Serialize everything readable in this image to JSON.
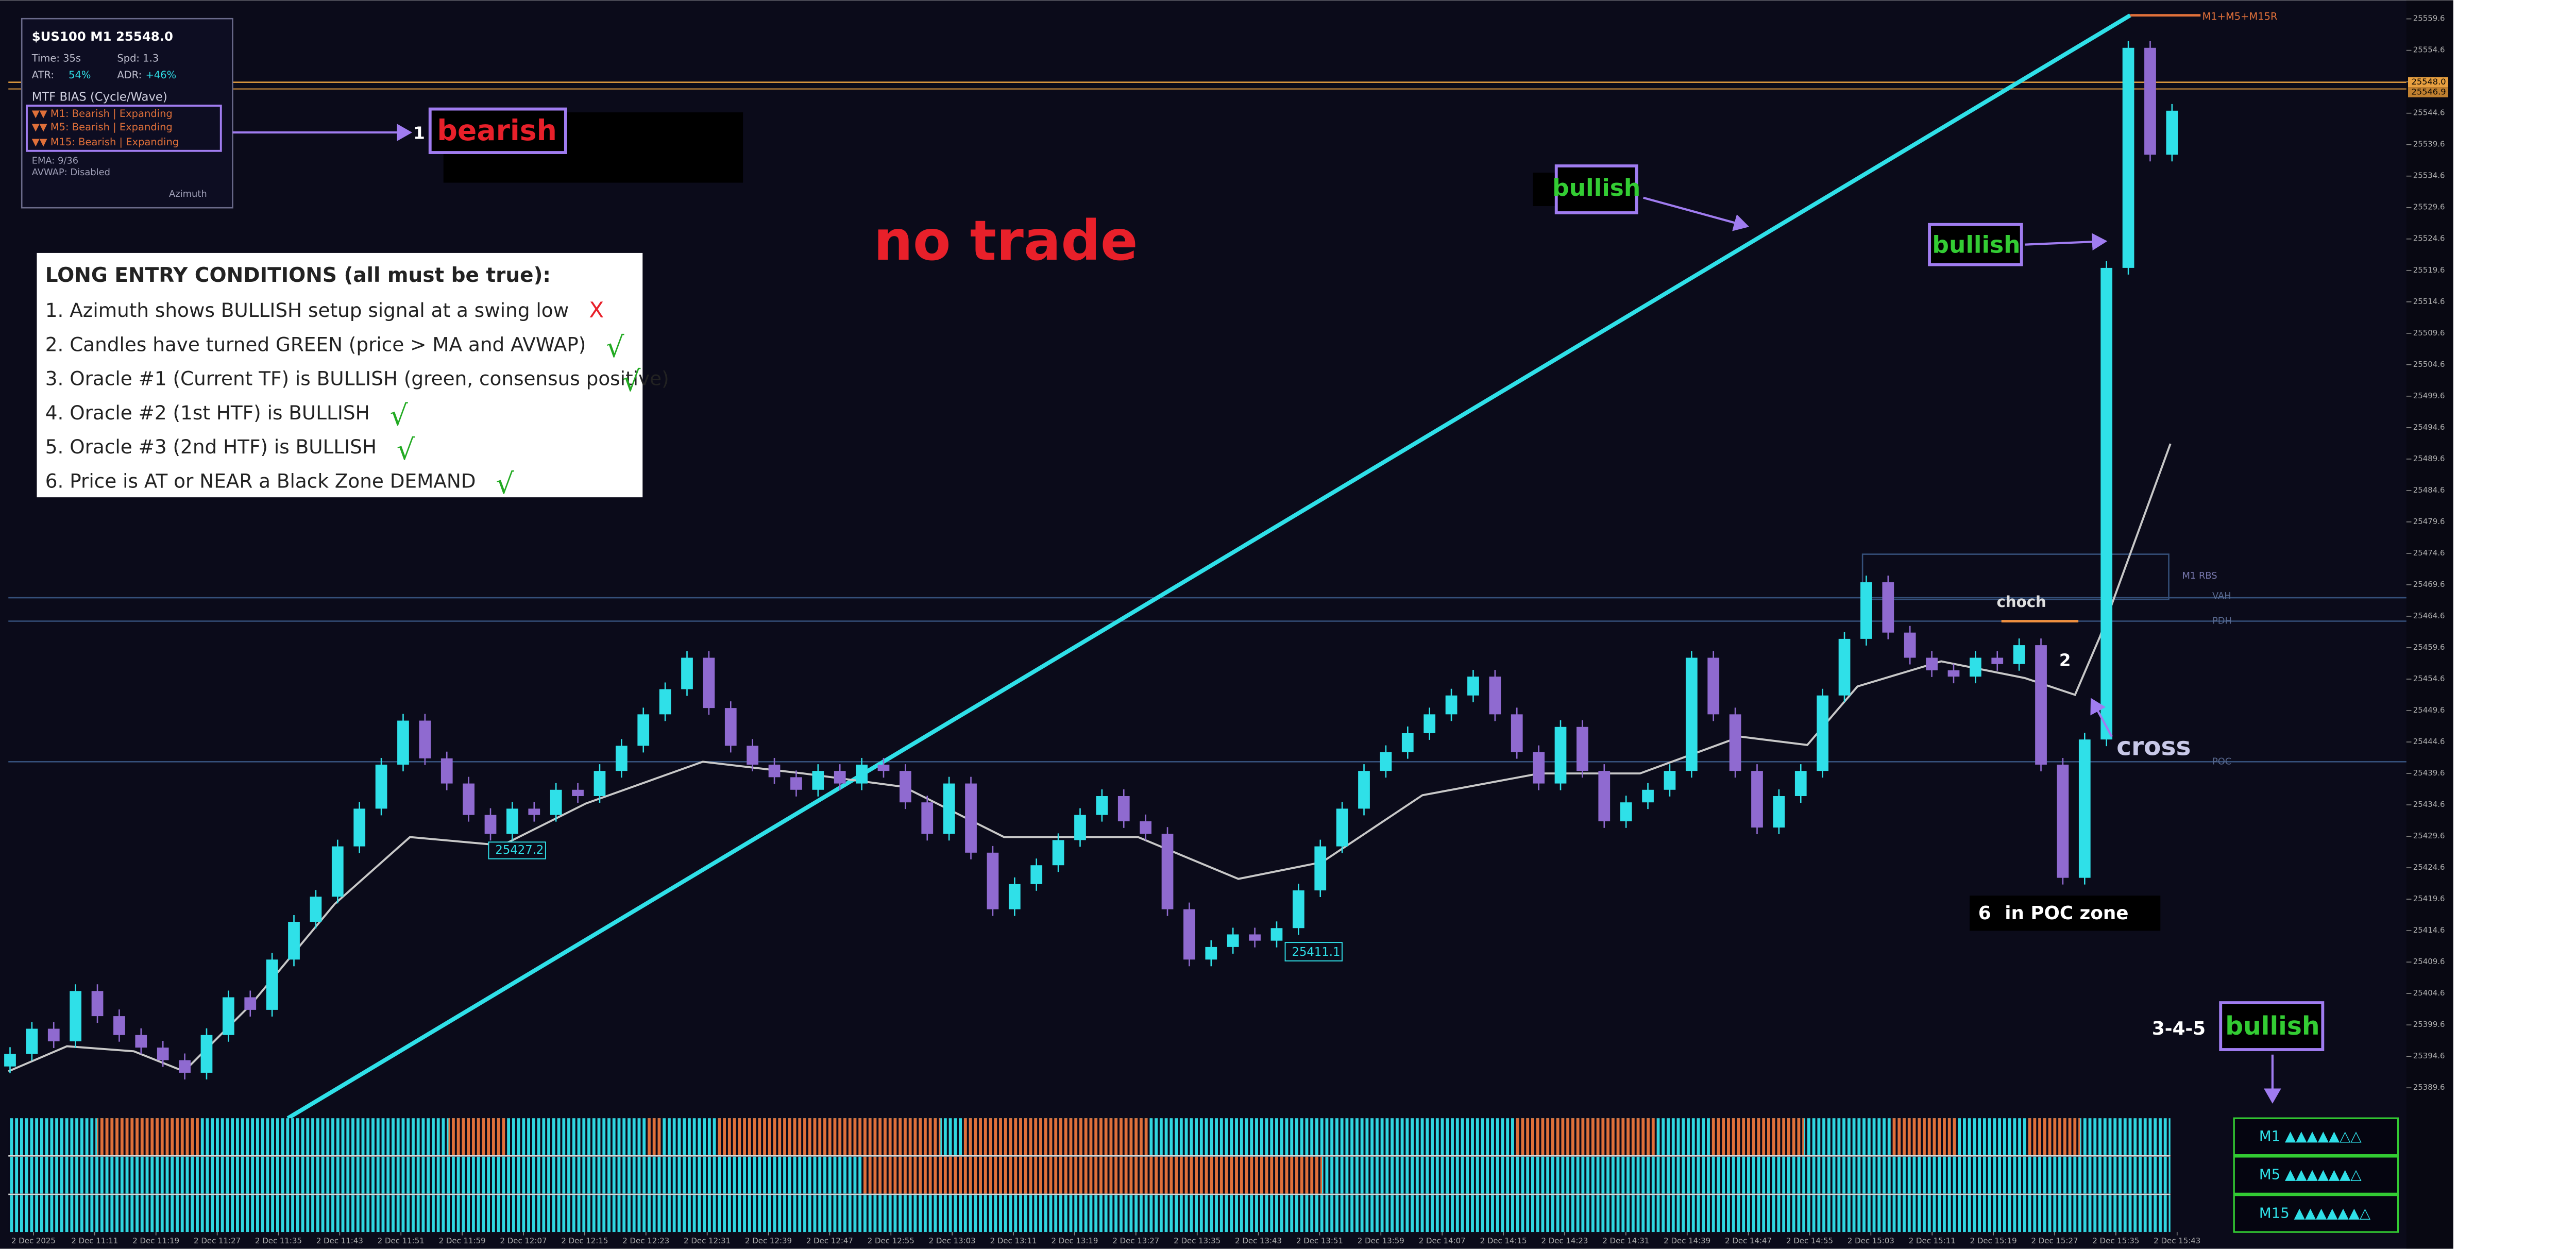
{
  "info_panel": {
    "title": "$US100 M1 25548.0",
    "time": "Time: 35s",
    "spd": "Spd: 1.3",
    "atr_label": "ATR:",
    "atr": "54%",
    "adr_label": "ADR:",
    "adr": "+46%",
    "bias_title": "MTF BIAS (Cycle/Wave)",
    "bias": [
      "▼▼ M1: Bearish | Expanding",
      "▼▼ M5: Bearish | Expanding",
      "▼▼ M15: Bearish | Expanding"
    ],
    "ema": "EMA: 9/36",
    "avwap": "AVWAP: Disabled",
    "brand": "Azimuth"
  },
  "conditions": {
    "title": "LONG ENTRY CONDITIONS (all must be true):",
    "items": [
      {
        "text": "1. Azimuth shows BULLISH setup signal at a swing low",
        "mark": "X"
      },
      {
        "text": "2. Candles have turned GREEN (price > MA and AVWAP)",
        "mark": "√"
      },
      {
        "text": "3. Oracle #1 (Current TF) is BULLISH (green, consensus positive)",
        "mark": "√"
      },
      {
        "text": "4. Oracle #2 (1st HTF) is BULLISH",
        "mark": "√"
      },
      {
        "text": "5. Oracle #3 (2nd HTF) is BULLISH",
        "mark": "√"
      },
      {
        "text": "6. Price is AT or NEAR a Black Zone DEMAND",
        "mark": "√"
      }
    ]
  },
  "annotations": {
    "step1": "1",
    "bearish": "bearish",
    "no_trade": "no trade",
    "bullish_line": "bullish",
    "bullish_candle": "bullish",
    "choch": "choch",
    "step2": "2",
    "cross": "cross",
    "step6": "6",
    "poc_zone": "in POC zone",
    "step345": "3-4-5",
    "bullish_table": "bullish",
    "swing_low_1": "25427.2",
    "swing_low_2": "25411.1",
    "mtf_label": "M1+M5+M15R"
  },
  "levels": {
    "rbs": "M1 RBS",
    "vah": "VAH",
    "pdh": "PDH",
    "poc": "POC",
    "price_now": "25548.0",
    "price_prev": "25546.9"
  },
  "chart": {
    "ylim": [
      25385.3,
      25561.5
    ],
    "yticks": [
      25559.6,
      25554.6,
      25549.6,
      25544.6,
      25539.6,
      25534.6,
      25529.6,
      25524.6,
      25519.6,
      25514.6,
      25509.6,
      25504.6,
      25499.6,
      25494.6,
      25489.6,
      25484.6,
      25479.6,
      25474.6,
      25469.6,
      25464.6,
      25459.6,
      25454.6,
      25449.6,
      25444.6,
      25439.6,
      25434.6,
      25429.6,
      25424.6,
      25419.6,
      25414.6,
      25409.6,
      25404.6,
      25399.6,
      25394.6,
      25389.6
    ],
    "xlabels": [
      "2 Dec 2025",
      "2 Dec 11:11",
      "2 Dec 11:19",
      "2 Dec 11:27",
      "2 Dec 11:35",
      "2 Dec 11:43",
      "2 Dec 11:51",
      "2 Dec 11:59",
      "2 Dec 12:07",
      "2 Dec 12:15",
      "2 Dec 12:23",
      "2 Dec 12:31",
      "2 Dec 12:39",
      "2 Dec 12:47",
      "2 Dec 12:55",
      "2 Dec 13:03",
      "2 Dec 13:11",
      "2 Dec 13:19",
      "2 Dec 13:27",
      "2 Dec 13:35",
      "2 Dec 13:43",
      "2 Dec 13:51",
      "2 Dec 13:59",
      "2 Dec 14:07",
      "2 Dec 14:15",
      "2 Dec 14:23",
      "2 Dec 14:31",
      "2 Dec 14:39",
      "2 Dec 14:47",
      "2 Dec 14:55",
      "2 Dec 15:03",
      "2 Dec 15:11",
      "2 Dec 15:19",
      "2 Dec 15:27",
      "2 Dec 15:35",
      "2 Dec 15:43"
    ],
    "open_first": 25393,
    "closes": [
      25395,
      25399,
      25397,
      25405,
      25401,
      25398,
      25396,
      25394,
      25392,
      25398,
      25404,
      25402,
      25410,
      25416,
      25420,
      25428,
      25434,
      25441,
      25448,
      25442,
      25438,
      25433,
      25430,
      25434,
      25433,
      25437,
      25436,
      25440,
      25444,
      25449,
      25453,
      25458,
      25450,
      25444,
      25441,
      25439,
      25437,
      25440,
      25438,
      25441,
      25440,
      25435,
      25430,
      25438,
      25427,
      25418,
      25422,
      25425,
      25429,
      25433,
      25436,
      25432,
      25430,
      25418,
      25410,
      25412,
      25414,
      25413,
      25415,
      25421,
      25428,
      25434,
      25440,
      25443,
      25446,
      25449,
      25452,
      25455,
      25449,
      25443,
      25438,
      25447,
      25440,
      25432,
      25435,
      25437,
      25440,
      25458,
      25449,
      25440,
      25431,
      25436,
      25440,
      25452,
      25461,
      25470,
      25462,
      25458,
      25456,
      25455,
      25458,
      25457,
      25460,
      25441,
      25423,
      25445,
      25520,
      25555,
      25538,
      25545
    ],
    "up_color": "#2fe0e8",
    "down_color": "#8f6ad0"
  },
  "mtf_table": {
    "rows": [
      "M1 ▲▲▲▲▲△△",
      "M5 ▲▲▲▲▲▲△",
      "M15 ▲▲▲▲▲▲△"
    ]
  }
}
